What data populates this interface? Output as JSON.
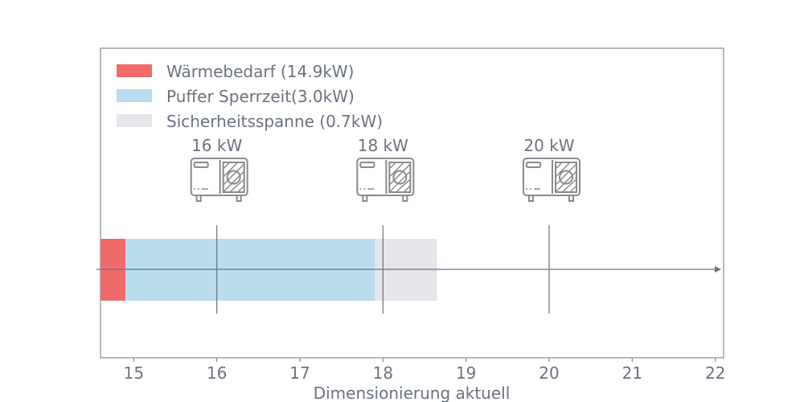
{
  "chart_data": {
    "type": "bar",
    "orientation": "horizontal-stacked",
    "xlabel": "Dimensionierung aktuell",
    "xlim": [
      14.6,
      22.1
    ],
    "xticks": [
      "15",
      "16",
      "17",
      "18",
      "19",
      "20",
      "21",
      "22"
    ],
    "legend_position": "top-left",
    "series": [
      {
        "name": "Wärmebedarf (14.9kW)",
        "start": 14.6,
        "end": 14.9,
        "color": "#f26b6b"
      },
      {
        "name": "Puffer Sperrzeit(3.0kW)",
        "start": 14.9,
        "end": 17.9,
        "color": "#b9dcee"
      },
      {
        "name": "Sicherheitsspanne (0.7kW)",
        "start": 17.9,
        "end": 18.65,
        "color": "#e5e5ea"
      }
    ],
    "markers": [
      {
        "value": 16,
        "label": "16 kW",
        "icon": "heat-pump-icon"
      },
      {
        "value": 18,
        "label": "18 kW",
        "icon": "heat-pump-icon"
      },
      {
        "value": 20,
        "label": "20 kW",
        "icon": "heat-pump-icon"
      }
    ]
  }
}
